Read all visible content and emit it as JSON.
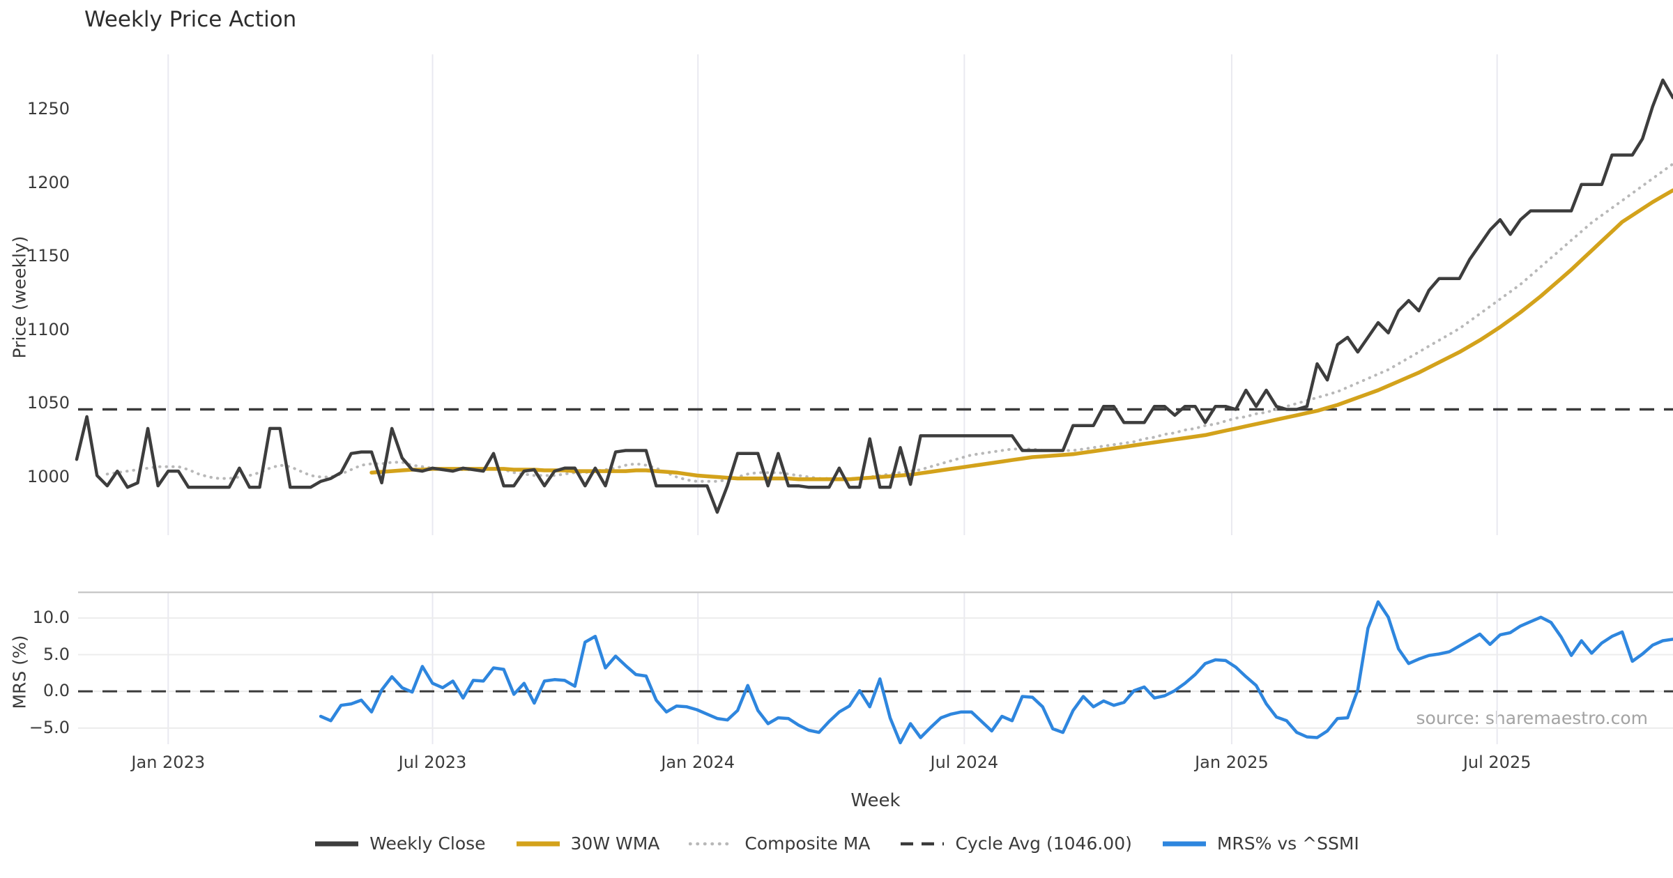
{
  "chart_data": {
    "type": "line",
    "title": "Weekly Price Action",
    "xlabel": "Week",
    "source_note": "source: sharemaestro.com",
    "x_ticks": [
      {
        "week": 9,
        "label": "Jan 2023"
      },
      {
        "week": 35,
        "label": "Jul 2023"
      },
      {
        "week": 61.1,
        "label": "Jan 2024"
      },
      {
        "week": 87.3,
        "label": "Jul 2024"
      },
      {
        "week": 113.6,
        "label": "Jan 2025"
      },
      {
        "week": 139.7,
        "label": "Jul 2025"
      }
    ],
    "panels": [
      {
        "name": "price",
        "ylabel": "Price (weekly)",
        "ylim": [
          950,
          1296
        ],
        "grid": "vertical",
        "yticks": [
          {
            "value": 1250,
            "label": "1250"
          },
          {
            "value": 1200,
            "label": "1200"
          },
          {
            "value": 1150,
            "label": "1150"
          },
          {
            "value": 1100,
            "label": "1100"
          },
          {
            "value": 1050,
            "label": "1050"
          },
          {
            "value": 1000,
            "label": "1000"
          }
        ],
        "hline": {
          "name": "Cycle Avg (1046.00)",
          "value": 1046,
          "color": "#3a3a3a",
          "style": "dashed",
          "width": 3.5
        },
        "series": [
          {
            "name": "Composite MA",
            "color": "#b8b8b8",
            "style": "dotted",
            "width": 4,
            "start_week": 3,
            "values": [
              1002,
              1003,
              1004,
              1005,
              1006,
              1007,
              1007,
              1007,
              1005,
              1002,
              1000,
              999,
              999,
              1000,
              1001,
              1003,
              1006,
              1008,
              1007,
              1004,
              1001,
              1000,
              1000,
              1002,
              1005,
              1008,
              1009,
              1009,
              1010,
              1010,
              1008,
              1007,
              1006,
              1005,
              1005,
              1005,
              1005,
              1005,
              1006,
              1005,
              1003,
              1002,
              1001,
              1001,
              1001,
              1002,
              1003,
              1003,
              1004,
              1005,
              1006,
              1008,
              1009,
              1008,
              1006,
              1003,
              1000,
              998,
              997,
              997,
              997,
              998,
              1000,
              1002,
              1003,
              1003,
              1003,
              1002,
              1001,
              1000,
              999,
              999,
              999,
              999,
              999,
              1000,
              1001,
              1002,
              1003,
              1004,
              1005,
              1007,
              1009,
              1011,
              1013,
              1015,
              1016,
              1017,
              1018,
              1019,
              1019,
              1019,
              1018,
              1018,
              1018,
              1018,
              1019,
              1020,
              1021,
              1022,
              1023,
              1024,
              1026,
              1027,
              1029,
              1030,
              1032,
              1033,
              1035,
              1036,
              1038,
              1040,
              1041,
              1043,
              1044,
              1046,
              1048,
              1050,
              1052,
              1054,
              1056,
              1058,
              1061,
              1064,
              1067,
              1070,
              1073,
              1077,
              1081,
              1085,
              1089,
              1093,
              1097,
              1101,
              1106,
              1111,
              1116,
              1121,
              1126,
              1131,
              1137,
              1143,
              1149,
              1155,
              1161,
              1167,
              1173,
              1178,
              1183,
              1188,
              1193,
              1198,
              1203,
              1208,
              1213
            ]
          },
          {
            "name": "30W WMA",
            "color": "#d3a21b",
            "style": "solid",
            "width": 5.5,
            "start_week": 29,
            "values": [
              1003,
              1003.5,
              1004,
              1004.5,
              1005,
              1005,
              1005.5,
              1005.5,
              1005.5,
              1005.5,
              1005.5,
              1005.5,
              1005.5,
              1005.5,
              1005,
              1005,
              1005,
              1004.5,
              1004.5,
              1004.5,
              1004,
              1004,
              1004,
              1004,
              1004,
              1004,
              1004.5,
              1004.5,
              1004,
              1003.5,
              1003,
              1002,
              1001,
              1000.5,
              1000,
              999.5,
              999,
              999,
              999,
              999,
              999,
              999,
              998.5,
              998.5,
              998.5,
              998.5,
              998.5,
              998.5,
              999,
              999.5,
              1000,
              1000.5,
              1001,
              1001.5,
              1002.5,
              1003.5,
              1004.5,
              1005.5,
              1006.5,
              1007.5,
              1008.5,
              1009.5,
              1010.5,
              1011.5,
              1012.5,
              1013.5,
              1014,
              1014.5,
              1015,
              1015.5,
              1016.5,
              1017.5,
              1018.5,
              1019.5,
              1020.5,
              1021.5,
              1022.5,
              1023.5,
              1024.5,
              1025.5,
              1026.5,
              1027.5,
              1028.5,
              1030,
              1031.5,
              1033,
              1034.5,
              1036,
              1037.5,
              1039,
              1040.5,
              1042,
              1043.5,
              1045,
              1047,
              1049,
              1051.5,
              1054,
              1056.5,
              1059,
              1062,
              1065,
              1068,
              1071,
              1074.5,
              1078,
              1081.5,
              1085,
              1089,
              1093,
              1097.5,
              1102,
              1107,
              1112,
              1117.5,
              1123,
              1129,
              1135,
              1141,
              1147.5,
              1154,
              1160.5,
              1167,
              1173.5,
              1178,
              1182.5,
              1187,
              1191,
              1195
            ]
          },
          {
            "name": "Weekly Close",
            "color": "#3d3d3d",
            "style": "solid",
            "width": 4.5,
            "start_week": 0,
            "values": [
              1012,
              1041,
              1001,
              994,
              1004,
              993,
              996,
              1033,
              994,
              1004,
              1004,
              993,
              993,
              993,
              993,
              993,
              1006,
              993,
              993,
              1033,
              1033,
              993,
              993,
              993,
              997,
              999,
              1003,
              1016,
              1017,
              1017,
              996,
              1033,
              1013,
              1005,
              1004,
              1006,
              1005,
              1004,
              1006,
              1005,
              1004,
              1016,
              994,
              994,
              1004,
              1005,
              994,
              1004,
              1006,
              1006,
              994,
              1006,
              994,
              1017,
              1018,
              1018,
              1018,
              994,
              994,
              994,
              994,
              994,
              994,
              976,
              994,
              1016,
              1016,
              1016,
              994,
              1016,
              994,
              994,
              993,
              993,
              993,
              1006,
              993,
              993,
              1026,
              993,
              993,
              1020,
              995,
              1028,
              1028,
              1028,
              1028,
              1028,
              1028,
              1028,
              1028,
              1028,
              1028,
              1018,
              1018,
              1018,
              1018,
              1018,
              1035,
              1035,
              1035,
              1048,
              1048,
              1037,
              1037,
              1037,
              1048,
              1048,
              1042,
              1048,
              1048,
              1037,
              1048,
              1048,
              1046,
              1059,
              1048,
              1059,
              1048,
              1046,
              1046,
              1048,
              1077,
              1066,
              1090,
              1095,
              1085,
              1095,
              1105,
              1098,
              1113,
              1120,
              1113,
              1127,
              1135,
              1135,
              1135,
              1148,
              1158,
              1168,
              1175,
              1165,
              1175,
              1181,
              1181,
              1181,
              1181,
              1181,
              1199,
              1199,
              1199,
              1219,
              1219,
              1219,
              1230,
              1252,
              1270,
              1258
            ]
          }
        ]
      },
      {
        "name": "mrs",
        "ylabel": "MRS (%)",
        "ylim": [
          -7.2,
          13.5
        ],
        "grid": "both",
        "top_spine": true,
        "yticks": [
          {
            "value": 10,
            "label": "10.0"
          },
          {
            "value": 5,
            "label": "5.0"
          },
          {
            "value": 0,
            "label": "0.0"
          },
          {
            "value": -5,
            "label": "−5.0"
          }
        ],
        "hline": {
          "name": "zero-line",
          "value": 0,
          "color": "#3a3a3a",
          "style": "dashed",
          "width": 3
        },
        "series": [
          {
            "name": "MRS% vs ^SSMI",
            "color": "#2e86de",
            "style": "solid",
            "width": 4.5,
            "start_week": 24,
            "values": [
              -3.4,
              -4.0,
              -1.9,
              -1.7,
              -1.2,
              -2.8,
              0.2,
              2.0,
              0.5,
              -0.1,
              3.4,
              1.1,
              0.5,
              1.4,
              -0.9,
              1.5,
              1.4,
              3.2,
              3.0,
              -0.4,
              1.1,
              -1.6,
              1.4,
              1.6,
              1.5,
              0.7,
              6.7,
              7.5,
              3.2,
              4.8,
              3.5,
              2.3,
              2.1,
              -1.2,
              -2.8,
              -2.0,
              -2.1,
              -2.5,
              -3.1,
              -3.7,
              -3.9,
              -2.6,
              0.8,
              -2.6,
              -4.4,
              -3.6,
              -3.7,
              -4.6,
              -5.3,
              -5.6,
              -4.1,
              -2.8,
              -2.0,
              0.1,
              -2.1,
              1.7,
              -3.6,
              -7.0,
              -4.4,
              -6.3,
              -4.9,
              -3.6,
              -3.1,
              -2.8,
              -2.8,
              -4.1,
              -5.4,
              -3.4,
              -4.0,
              -0.7,
              -0.8,
              -2.1,
              -5.1,
              -5.6,
              -2.6,
              -0.7,
              -2.1,
              -1.3,
              -1.9,
              -1.5,
              0.1,
              0.6,
              -0.9,
              -0.6,
              0.1,
              1.1,
              2.3,
              3.8,
              4.3,
              4.2,
              3.3,
              2.0,
              0.8,
              -1.7,
              -3.5,
              -4.0,
              -5.6,
              -6.2,
              -6.3,
              -5.4,
              -3.7,
              -3.6,
              0.2,
              8.6,
              12.2,
              10.1,
              5.8,
              3.8,
              4.4,
              4.9,
              5.1,
              5.4,
              6.2,
              7.0,
              7.8,
              6.4,
              7.7,
              8.0,
              8.9,
              9.5,
              10.1,
              9.4,
              7.4,
              4.9,
              6.9,
              5.2,
              6.6,
              7.5,
              8.1,
              4.1,
              5.1,
              6.3,
              6.9,
              7.1
            ]
          }
        ]
      }
    ],
    "legend": [
      {
        "label": "Weekly Close",
        "color": "#3d3d3d",
        "style": "solid"
      },
      {
        "label": "30W WMA",
        "color": "#d3a21b",
        "style": "solid"
      },
      {
        "label": "Composite MA",
        "color": "#b8b8b8",
        "style": "dotted"
      },
      {
        "label": "Cycle Avg (1046.00)",
        "color": "#3a3a3a",
        "style": "dashed"
      },
      {
        "label": "MRS% vs ^SSMI",
        "color": "#2e86de",
        "style": "solid"
      }
    ],
    "colors": {
      "grid": "#e9e9f0",
      "hgrid": "#ececec",
      "spine": "#c9c9c9",
      "tick_text": "#3b3b3b",
      "title_text": "#2d2d2d",
      "source_text": "#a3a3a3"
    }
  }
}
